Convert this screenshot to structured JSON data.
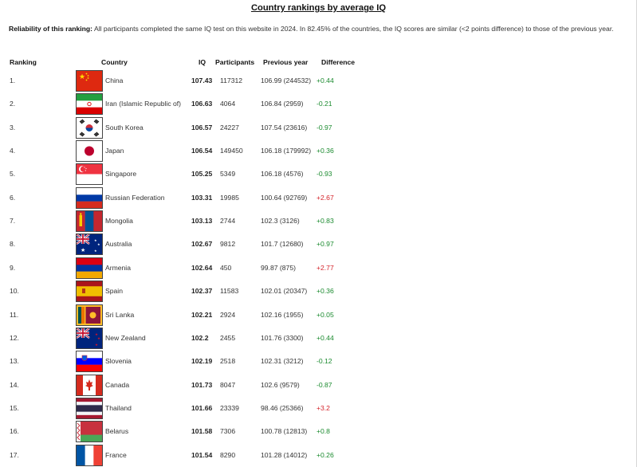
{
  "title": "Country rankings by average IQ",
  "note": {
    "label": "Reliability of this ranking:",
    "text": " All participants completed the same IQ test on this website in 2024. In 82.45% of the countries, the IQ scores are similar (<2 points difference) to those of the previous year."
  },
  "columns": {
    "ranking": "Ranking",
    "country": "Country",
    "iq": "IQ",
    "participants": "Participants",
    "previous": "Previous year",
    "difference": "Difference"
  },
  "rows": [
    {
      "rank": "1.",
      "flag": "china-flag-icon",
      "country": "China",
      "iq": "107.43",
      "participants": "117312",
      "previous": "106.99 (244532)",
      "difference": "+0.44",
      "tone": "pos"
    },
    {
      "rank": "2.",
      "flag": "iran-flag-icon",
      "country": "Iran (Islamic Republic of)",
      "iq": "106.63",
      "participants": "4064",
      "previous": "106.84 (2959)",
      "difference": "-0.21",
      "tone": "pos"
    },
    {
      "rank": "3.",
      "flag": "south-korea-flag-icon",
      "country": "South Korea",
      "iq": "106.57",
      "participants": "24227",
      "previous": "107.54 (23616)",
      "difference": "-0.97",
      "tone": "pos"
    },
    {
      "rank": "4.",
      "flag": "japan-flag-icon",
      "country": "Japan",
      "iq": "106.54",
      "participants": "149450",
      "previous": "106.18 (179992)",
      "difference": "+0.36",
      "tone": "pos"
    },
    {
      "rank": "5.",
      "flag": "singapore-flag-icon",
      "country": "Singapore",
      "iq": "105.25",
      "participants": "5349",
      "previous": "106.18 (4576)",
      "difference": "-0.93",
      "tone": "pos"
    },
    {
      "rank": "6.",
      "flag": "russia-flag-icon",
      "country": "Russian Federation",
      "iq": "103.31",
      "participants": "19985",
      "previous": "100.64 (92769)",
      "difference": "+2.67",
      "tone": "hi"
    },
    {
      "rank": "7.",
      "flag": "mongolia-flag-icon",
      "country": "Mongolia",
      "iq": "103.13",
      "participants": "2744",
      "previous": "102.3 (3126)",
      "difference": "+0.83",
      "tone": "pos"
    },
    {
      "rank": "8.",
      "flag": "australia-flag-icon",
      "country": "Australia",
      "iq": "102.67",
      "participants": "9812",
      "previous": "101.7 (12680)",
      "difference": "+0.97",
      "tone": "pos"
    },
    {
      "rank": "9.",
      "flag": "armenia-flag-icon",
      "country": "Armenia",
      "iq": "102.64",
      "participants": "450",
      "previous": "99.87 (875)",
      "difference": "+2.77",
      "tone": "hi"
    },
    {
      "rank": "10.",
      "flag": "spain-flag-icon",
      "country": "Spain",
      "iq": "102.37",
      "participants": "11583",
      "previous": "102.01 (20347)",
      "difference": "+0.36",
      "tone": "pos"
    },
    {
      "rank": "11.",
      "flag": "sri-lanka-flag-icon",
      "country": "Sri Lanka",
      "iq": "102.21",
      "participants": "2924",
      "previous": "102.16 (1955)",
      "difference": "+0.05",
      "tone": "pos"
    },
    {
      "rank": "12.",
      "flag": "new-zealand-flag-icon",
      "country": "New Zealand",
      "iq": "102.2",
      "participants": "2455",
      "previous": "101.76 (3300)",
      "difference": "+0.44",
      "tone": "pos"
    },
    {
      "rank": "13.",
      "flag": "slovenia-flag-icon",
      "country": "Slovenia",
      "iq": "102.19",
      "participants": "2518",
      "previous": "102.31 (3212)",
      "difference": "-0.12",
      "tone": "pos"
    },
    {
      "rank": "14.",
      "flag": "canada-flag-icon",
      "country": "Canada",
      "iq": "101.73",
      "participants": "8047",
      "previous": "102.6 (9579)",
      "difference": "-0.87",
      "tone": "pos"
    },
    {
      "rank": "15.",
      "flag": "thailand-flag-icon",
      "country": "Thailand",
      "iq": "101.66",
      "participants": "23339",
      "previous": "98.46 (25366)",
      "difference": "+3.2",
      "tone": "hi"
    },
    {
      "rank": "16.",
      "flag": "belarus-flag-icon",
      "country": "Belarus",
      "iq": "101.58",
      "participants": "7306",
      "previous": "100.78 (12813)",
      "difference": "+0.8",
      "tone": "pos"
    },
    {
      "rank": "17.",
      "flag": "france-flag-icon",
      "country": "France",
      "iq": "101.54",
      "participants": "8290",
      "previous": "101.28 (14012)",
      "difference": "+0.26",
      "tone": "pos"
    }
  ],
  "colors": {
    "positive": "#1a8a2e",
    "highlight": "#d4232a"
  }
}
